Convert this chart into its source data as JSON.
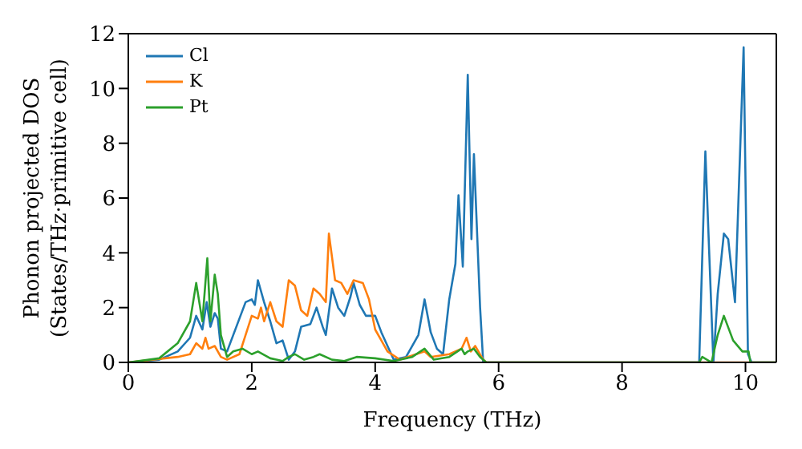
{
  "chart_data": {
    "type": "line",
    "xlabel": "Frequency (THz)",
    "ylabel": "Phonon projected DOS\n(States/THz·primitive cell)",
    "xlim": [
      0,
      10.5
    ],
    "xticks": [
      0,
      2,
      4,
      6,
      8,
      10
    ],
    "ylim": [
      0,
      12
    ],
    "yticks": [
      0,
      2,
      4,
      6,
      8,
      10,
      12
    ],
    "legend": "top left",
    "series": [
      {
        "name": "Cl",
        "color": "#1f77b4",
        "x": [
          0,
          0.5,
          0.8,
          1.0,
          1.1,
          1.2,
          1.27,
          1.33,
          1.4,
          1.45,
          1.5,
          1.6,
          1.75,
          1.9,
          2.0,
          2.05,
          2.1,
          2.2,
          2.3,
          2.4,
          2.5,
          2.6,
          2.7,
          2.8,
          2.95,
          3.05,
          3.15,
          3.2,
          3.3,
          3.4,
          3.5,
          3.6,
          3.65,
          3.75,
          3.85,
          4.0,
          4.1,
          4.2,
          4.3,
          4.5,
          4.7,
          4.8,
          4.9,
          5.0,
          5.1,
          5.2,
          5.3,
          5.35,
          5.42,
          5.5,
          5.56,
          5.6,
          5.7,
          5.75,
          9.25,
          9.35,
          9.48,
          9.55,
          9.65,
          9.72,
          9.83,
          9.97,
          10.04,
          10.1,
          10.5
        ],
        "values": [
          0,
          0.1,
          0.4,
          0.9,
          1.7,
          1.2,
          2.2,
          1.3,
          1.8,
          1.6,
          0.5,
          0.4,
          1.3,
          2.2,
          2.3,
          2.1,
          3.0,
          2.2,
          1.5,
          0.7,
          0.8,
          0.1,
          0.4,
          1.3,
          1.4,
          2.0,
          1.3,
          1.0,
          2.7,
          2.0,
          1.7,
          2.4,
          2.9,
          2.1,
          1.7,
          1.7,
          1.1,
          0.6,
          0.1,
          0.2,
          1.0,
          2.3,
          1.1,
          0.5,
          0.3,
          2.3,
          3.6,
          6.1,
          3.5,
          10.5,
          4.5,
          7.6,
          2.0,
          0,
          0,
          7.7,
          0,
          2.5,
          4.7,
          4.5,
          2.2,
          11.5,
          0.3,
          0,
          0
        ]
      },
      {
        "name": "K",
        "color": "#ff7f0e",
        "x": [
          0,
          0.8,
          1.0,
          1.1,
          1.2,
          1.25,
          1.3,
          1.4,
          1.5,
          1.6,
          1.8,
          1.9,
          2.0,
          2.1,
          2.15,
          2.2,
          2.3,
          2.4,
          2.5,
          2.6,
          2.7,
          2.8,
          2.9,
          3.0,
          3.1,
          3.2,
          3.25,
          3.35,
          3.45,
          3.55,
          3.65,
          3.8,
          3.9,
          4.0,
          4.1,
          4.2,
          4.4,
          4.8,
          4.9,
          5.2,
          5.4,
          5.48,
          5.55,
          5.62,
          5.75,
          5.8,
          10.5
        ],
        "values": [
          0,
          0.2,
          0.3,
          0.7,
          0.5,
          0.9,
          0.5,
          0.6,
          0.2,
          0.1,
          0.3,
          1.0,
          1.7,
          1.6,
          2.0,
          1.5,
          2.2,
          1.5,
          1.3,
          3.0,
          2.8,
          1.9,
          1.7,
          2.7,
          2.5,
          2.2,
          4.7,
          3.0,
          2.9,
          2.5,
          3.0,
          2.9,
          2.3,
          1.2,
          0.8,
          0.4,
          0.1,
          0.4,
          0.2,
          0.3,
          0.5,
          0.9,
          0.4,
          0.6,
          0.1,
          0,
          0
        ]
      },
      {
        "name": "Pt",
        "color": "#2ca02c",
        "x": [
          0,
          0.5,
          0.8,
          1.0,
          1.1,
          1.2,
          1.28,
          1.33,
          1.4,
          1.45,
          1.5,
          1.6,
          1.7,
          1.85,
          2.0,
          2.1,
          2.3,
          2.4,
          2.5,
          2.6,
          2.7,
          2.85,
          3.0,
          3.1,
          3.3,
          3.5,
          3.7,
          4.0,
          4.3,
          4.6,
          4.8,
          4.95,
          5.2,
          5.4,
          5.45,
          5.5,
          5.6,
          5.7,
          5.8,
          9.25,
          9.3,
          9.45,
          9.55,
          9.65,
          9.8,
          9.95,
          10.05,
          10.08,
          10.5
        ],
        "values": [
          0,
          0.15,
          0.7,
          1.5,
          2.9,
          1.5,
          3.8,
          1.5,
          3.2,
          2.5,
          1.0,
          0.2,
          0.4,
          0.5,
          0.3,
          0.4,
          0.15,
          0.1,
          0.05,
          0.2,
          0.3,
          0.1,
          0.2,
          0.3,
          0.1,
          0.05,
          0.2,
          0.15,
          0.05,
          0.2,
          0.5,
          0.1,
          0.2,
          0.5,
          0.3,
          0.4,
          0.5,
          0.2,
          0,
          0,
          0.2,
          0,
          1.0,
          1.7,
          0.8,
          0.4,
          0.4,
          0,
          0
        ]
      }
    ]
  }
}
